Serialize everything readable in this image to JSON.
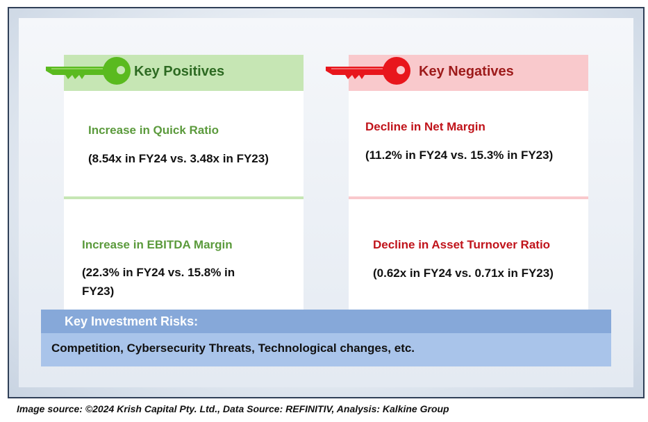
{
  "positives": {
    "header": "Key Positives",
    "accent": "#5aba1f",
    "items": [
      {
        "title": "Increase in Quick Ratio",
        "detail": "(8.54x in FY24 vs. 3.48x in FY23)"
      },
      {
        "title": "Increase in EBITDA Margin",
        "detail_line1": "(22.3% in FY24 vs. 15.8% in",
        "detail_line2": "FY23)"
      }
    ]
  },
  "negatives": {
    "header": "Key Negatives",
    "accent": "#e8161c",
    "items": [
      {
        "title": "Decline in Net Margin",
        "detail": "(11.2% in FY24 vs. 15.3% in FY23)"
      },
      {
        "title": "Decline in Asset Turnover Ratio",
        "detail": "(0.62x in FY24 vs. 0.71x in FY23)"
      }
    ]
  },
  "risks": {
    "header": "Key Investment Risks:",
    "body": "Competition, Cybersecurity Threats, Technological changes, etc."
  },
  "caption": "Image source: ©2024 Krish Capital Pty. Ltd., Data Source: REFINITIV, Analysis: Kalkine Group",
  "icons": {
    "positive": "green-key-icon",
    "negative": "red-key-icon"
  }
}
